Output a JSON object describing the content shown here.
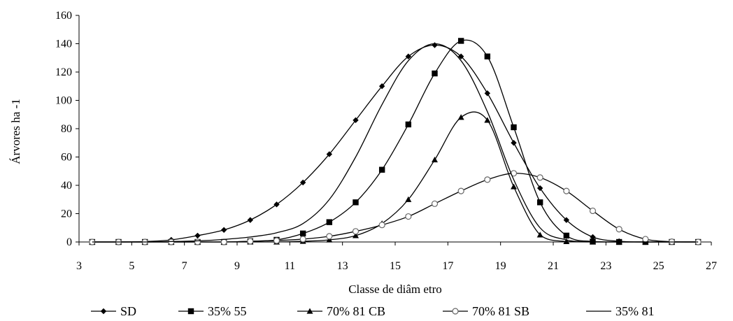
{
  "chart_data": {
    "type": "line",
    "title": "",
    "xlabel": "Classe de diâm etro",
    "ylabel": "Árvores  ha -1",
    "xlim": [
      3,
      27
    ],
    "ylim": [
      0,
      160
    ],
    "xticks": [
      "3",
      "5",
      "7",
      "9",
      "11",
      "13",
      "15",
      "17",
      "19",
      "21",
      "23",
      "25",
      "27"
    ],
    "yticks": [
      "0",
      "20",
      "40",
      "60",
      "80",
      "100",
      "120",
      "140",
      "160"
    ],
    "grid": false,
    "legend_position": "bottom",
    "x": [
      3.5,
      4.5,
      5.5,
      6.5,
      7.5,
      8.5,
      9.5,
      10.5,
      11.5,
      12.5,
      13.5,
      14.5,
      15.5,
      16.5,
      17.5,
      18.5,
      19.5,
      20.5,
      21.5,
      22.5,
      23.5,
      24.5,
      25.5,
      26.5
    ],
    "series": [
      {
        "name": "SD",
        "marker": "diamond",
        "color": "#000000",
        "values": [
          0,
          0,
          0.3,
          1.5,
          4.5,
          8.5,
          15.5,
          26.5,
          42,
          62,
          86,
          110,
          131,
          139,
          131,
          105,
          70,
          38,
          15.5,
          3.5,
          0.5,
          0,
          0,
          0
        ]
      },
      {
        "name": "35% 55",
        "marker": "square",
        "color": "#000000",
        "values": [
          0,
          0,
          0,
          0,
          0,
          0,
          0.5,
          1.5,
          6,
          14,
          28,
          51,
          83,
          119,
          142,
          131,
          81,
          28,
          4.5,
          0.3,
          0,
          0,
          0,
          0
        ]
      },
      {
        "name": "70% 81 CB",
        "marker": "triangle",
        "color": "#000000",
        "values": [
          0,
          0,
          0,
          0,
          0,
          0,
          0,
          0,
          0.5,
          1.5,
          4.5,
          13,
          30,
          58,
          88,
          86,
          39,
          5,
          0.3,
          0,
          0,
          0,
          0,
          0
        ]
      },
      {
        "name": "70% 81 SB",
        "marker": "circle-open",
        "color": "#000000",
        "values": [
          0,
          0,
          0,
          0,
          0,
          0,
          0.5,
          1,
          2,
          4,
          7.5,
          12,
          18,
          27,
          36,
          44,
          48.5,
          45.5,
          36,
          22,
          9,
          2,
          0.2,
          0
        ]
      },
      {
        "name": "35% 81",
        "marker": "none",
        "color": "#000000",
        "values": [
          0,
          0,
          0,
          0.3,
          0.8,
          1.8,
          3.5,
          6.5,
          13,
          30,
          60,
          97,
          128,
          140,
          128,
          92,
          44,
          10,
          1.5,
          0,
          0,
          0,
          0,
          0
        ]
      }
    ]
  }
}
